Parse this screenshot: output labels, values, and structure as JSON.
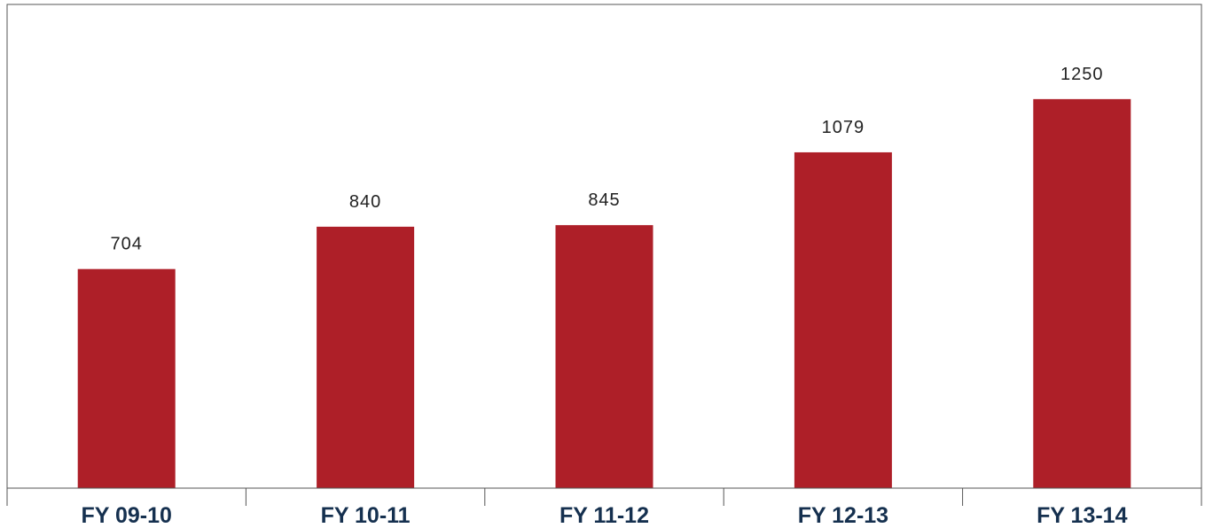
{
  "chart_data": {
    "type": "bar",
    "categories": [
      "FY 09-10",
      "FY 10-11",
      "FY 11-12",
      "FY 12-13",
      "FY 13-14"
    ],
    "values": [
      704,
      840,
      845,
      1079,
      1250
    ],
    "data_labels": [
      "704",
      "840",
      "845",
      "1079",
      "1250"
    ],
    "title": "",
    "xlabel": "",
    "ylabel": "",
    "ylim": [
      0,
      1400
    ],
    "grid": false,
    "legend": "none",
    "bar_color": "#ae1f28",
    "category_label_color": "#15304f"
  }
}
